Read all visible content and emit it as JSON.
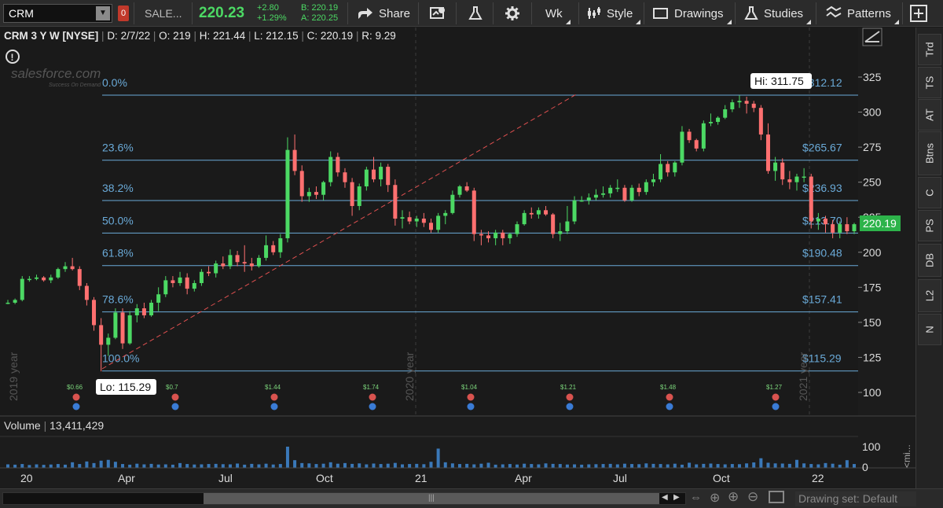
{
  "toolbar": {
    "symbol": "CRM",
    "symbol_badge": "0",
    "company_short": "SALE...",
    "last_price": "220.23",
    "change": "+2.80",
    "change_pct": "+1.29%",
    "bid": "B: 220.19",
    "ask": "A: 220.25",
    "share_label": "Share",
    "period_label": "Wk",
    "style_label": "Style",
    "drawings_label": "Drawings",
    "studies_label": "Studies",
    "patterns_label": "Patterns",
    "colors": {
      "up": "#4cd964",
      "down": "#ff7070",
      "accent": "#5ab0ff"
    }
  },
  "infobar": {
    "title": "CRM 3 Y W [NYSE]",
    "d": "D: 2/7/22",
    "o": "O: 219",
    "h": "H: 221.44",
    "l": "L: 212.15",
    "c": "C: 220.19",
    "r": "R: 9.29"
  },
  "logo": {
    "line1": "salesforce.com",
    "line2": "Success On Demand"
  },
  "right_tabs": [
    "Trd",
    "TS",
    "AT",
    "Btns",
    "C",
    "PS",
    "DB",
    "L2",
    "N"
  ],
  "bottom": {
    "drawing_set": "Drawing set: Default"
  },
  "chart_data": [
    {
      "type": "candlestick",
      "title": "CRM 3 Y W [NYSE]",
      "ylim": [
        92,
        335
      ],
      "y_ticks": [
        100,
        125,
        150,
        175,
        200,
        225,
        250,
        275,
        300,
        325
      ],
      "x_tick_labels": [
        "20",
        "Apr",
        "Jul",
        "Oct",
        "21",
        "Apr",
        "Jul",
        "Oct",
        "22"
      ],
      "year_labels": [
        "2019 year",
        "2020 year",
        "2021 year"
      ],
      "last_price_label": "220.19",
      "hi_label": "Hi: 311.75",
      "lo_label": "Lo: 115.29",
      "fib_levels": [
        {
          "pct": "0.0%",
          "price": 312.12,
          "label": "$312.12"
        },
        {
          "pct": "23.6%",
          "price": 265.67,
          "label": "$265.67"
        },
        {
          "pct": "38.2%",
          "price": 236.93,
          "label": "$236.93"
        },
        {
          "pct": "50.0%",
          "price": 213.7,
          "label": "$213.70"
        },
        {
          "pct": "61.8%",
          "price": 190.48,
          "label": "$190.48"
        },
        {
          "pct": "78.6%",
          "price": 157.41,
          "label": "$157.41"
        },
        {
          "pct": "100.0%",
          "price": 115.29,
          "label": "$115.29"
        }
      ],
      "dividends": [
        "$0.66",
        "$0.7",
        "$1.44",
        "$1.74",
        "$1.04",
        "$1.21",
        "$1.48",
        "$1.27"
      ],
      "candles": [
        {
          "o": 164,
          "h": 166,
          "l": 163,
          "c": 164
        },
        {
          "o": 164,
          "h": 167,
          "l": 163,
          "c": 166
        },
        {
          "o": 166,
          "h": 183,
          "l": 165,
          "c": 181
        },
        {
          "o": 181,
          "h": 183,
          "l": 179,
          "c": 181
        },
        {
          "o": 181,
          "h": 184,
          "l": 180,
          "c": 182
        },
        {
          "o": 182,
          "h": 183,
          "l": 179,
          "c": 180
        },
        {
          "o": 180,
          "h": 184,
          "l": 178,
          "c": 182
        },
        {
          "o": 182,
          "h": 189,
          "l": 181,
          "c": 188
        },
        {
          "o": 188,
          "h": 193,
          "l": 186,
          "c": 190
        },
        {
          "o": 190,
          "h": 196,
          "l": 187,
          "c": 188
        },
        {
          "o": 188,
          "h": 190,
          "l": 173,
          "c": 176
        },
        {
          "o": 176,
          "h": 178,
          "l": 162,
          "c": 166
        },
        {
          "o": 166,
          "h": 168,
          "l": 144,
          "c": 148
        },
        {
          "o": 148,
          "h": 153,
          "l": 115,
          "c": 134
        },
        {
          "o": 134,
          "h": 142,
          "l": 126,
          "c": 139
        },
        {
          "o": 139,
          "h": 160,
          "l": 138,
          "c": 157
        },
        {
          "o": 157,
          "h": 160,
          "l": 131,
          "c": 135
        },
        {
          "o": 135,
          "h": 158,
          "l": 134,
          "c": 155
        },
        {
          "o": 155,
          "h": 163,
          "l": 150,
          "c": 160
        },
        {
          "o": 160,
          "h": 164,
          "l": 153,
          "c": 155
        },
        {
          "o": 155,
          "h": 166,
          "l": 154,
          "c": 164
        },
        {
          "o": 164,
          "h": 175,
          "l": 158,
          "c": 170
        },
        {
          "o": 170,
          "h": 183,
          "l": 168,
          "c": 180
        },
        {
          "o": 180,
          "h": 183,
          "l": 175,
          "c": 178
        },
        {
          "o": 178,
          "h": 186,
          "l": 176,
          "c": 182
        },
        {
          "o": 182,
          "h": 185,
          "l": 170,
          "c": 174
        },
        {
          "o": 174,
          "h": 180,
          "l": 172,
          "c": 178
        },
        {
          "o": 178,
          "h": 188,
          "l": 176,
          "c": 186
        },
        {
          "o": 186,
          "h": 190,
          "l": 183,
          "c": 185
        },
        {
          "o": 185,
          "h": 194,
          "l": 182,
          "c": 192
        },
        {
          "o": 192,
          "h": 197,
          "l": 188,
          "c": 190
        },
        {
          "o": 190,
          "h": 202,
          "l": 188,
          "c": 198
        },
        {
          "o": 198,
          "h": 201,
          "l": 190,
          "c": 193
        },
        {
          "o": 193,
          "h": 205,
          "l": 186,
          "c": 192
        },
        {
          "o": 192,
          "h": 196,
          "l": 187,
          "c": 190
        },
        {
          "o": 190,
          "h": 198,
          "l": 189,
          "c": 196
        },
        {
          "o": 196,
          "h": 212,
          "l": 194,
          "c": 205
        },
        {
          "o": 205,
          "h": 208,
          "l": 198,
          "c": 200
        },
        {
          "o": 200,
          "h": 213,
          "l": 196,
          "c": 210
        },
        {
          "o": 210,
          "h": 282,
          "l": 207,
          "c": 273
        },
        {
          "o": 273,
          "h": 284,
          "l": 255,
          "c": 258
        },
        {
          "o": 258,
          "h": 262,
          "l": 236,
          "c": 240
        },
        {
          "o": 240,
          "h": 246,
          "l": 236,
          "c": 243
        },
        {
          "o": 243,
          "h": 247,
          "l": 238,
          "c": 241
        },
        {
          "o": 241,
          "h": 251,
          "l": 237,
          "c": 250
        },
        {
          "o": 250,
          "h": 272,
          "l": 247,
          "c": 268
        },
        {
          "o": 268,
          "h": 271,
          "l": 254,
          "c": 257
        },
        {
          "o": 257,
          "h": 260,
          "l": 246,
          "c": 250
        },
        {
          "o": 250,
          "h": 253,
          "l": 226,
          "c": 233
        },
        {
          "o": 233,
          "h": 249,
          "l": 230,
          "c": 247
        },
        {
          "o": 247,
          "h": 261,
          "l": 244,
          "c": 259
        },
        {
          "o": 259,
          "h": 268,
          "l": 250,
          "c": 252
        },
        {
          "o": 252,
          "h": 264,
          "l": 247,
          "c": 261
        },
        {
          "o": 261,
          "h": 263,
          "l": 243,
          "c": 248
        },
        {
          "o": 248,
          "h": 252,
          "l": 219,
          "c": 224
        },
        {
          "o": 224,
          "h": 230,
          "l": 217,
          "c": 225
        },
        {
          "o": 225,
          "h": 229,
          "l": 220,
          "c": 222
        },
        {
          "o": 222,
          "h": 226,
          "l": 218,
          "c": 224
        },
        {
          "o": 224,
          "h": 228,
          "l": 218,
          "c": 221
        },
        {
          "o": 221,
          "h": 224,
          "l": 214,
          "c": 216
        },
        {
          "o": 216,
          "h": 228,
          "l": 214,
          "c": 226
        },
        {
          "o": 226,
          "h": 230,
          "l": 220,
          "c": 228
        },
        {
          "o": 228,
          "h": 244,
          "l": 227,
          "c": 241
        },
        {
          "o": 241,
          "h": 248,
          "l": 239,
          "c": 247
        },
        {
          "o": 247,
          "h": 250,
          "l": 243,
          "c": 244
        },
        {
          "o": 244,
          "h": 246,
          "l": 208,
          "c": 213
        },
        {
          "o": 213,
          "h": 216,
          "l": 205,
          "c": 212
        },
        {
          "o": 212,
          "h": 215,
          "l": 207,
          "c": 210
        },
        {
          "o": 210,
          "h": 216,
          "l": 205,
          "c": 214
        },
        {
          "o": 214,
          "h": 216,
          "l": 205,
          "c": 210
        },
        {
          "o": 210,
          "h": 214,
          "l": 206,
          "c": 213
        },
        {
          "o": 213,
          "h": 222,
          "l": 211,
          "c": 220
        },
        {
          "o": 220,
          "h": 230,
          "l": 219,
          "c": 228
        },
        {
          "o": 228,
          "h": 232,
          "l": 224,
          "c": 227
        },
        {
          "o": 227,
          "h": 232,
          "l": 224,
          "c": 230
        },
        {
          "o": 230,
          "h": 233,
          "l": 226,
          "c": 227
        },
        {
          "o": 227,
          "h": 228,
          "l": 210,
          "c": 213
        },
        {
          "o": 213,
          "h": 221,
          "l": 208,
          "c": 215
        },
        {
          "o": 215,
          "h": 233,
          "l": 213,
          "c": 222
        },
        {
          "o": 222,
          "h": 240,
          "l": 220,
          "c": 237
        },
        {
          "o": 237,
          "h": 240,
          "l": 236,
          "c": 237
        },
        {
          "o": 237,
          "h": 242,
          "l": 234,
          "c": 239
        },
        {
          "o": 239,
          "h": 245,
          "l": 237,
          "c": 241
        },
        {
          "o": 241,
          "h": 247,
          "l": 239,
          "c": 242
        },
        {
          "o": 242,
          "h": 248,
          "l": 239,
          "c": 246
        },
        {
          "o": 246,
          "h": 252,
          "l": 243,
          "c": 246
        },
        {
          "o": 246,
          "h": 248,
          "l": 236,
          "c": 237
        },
        {
          "o": 237,
          "h": 248,
          "l": 236,
          "c": 246
        },
        {
          "o": 246,
          "h": 249,
          "l": 240,
          "c": 243
        },
        {
          "o": 243,
          "h": 252,
          "l": 241,
          "c": 250
        },
        {
          "o": 250,
          "h": 256,
          "l": 247,
          "c": 252
        },
        {
          "o": 252,
          "h": 270,
          "l": 250,
          "c": 263
        },
        {
          "o": 263,
          "h": 265,
          "l": 254,
          "c": 257
        },
        {
          "o": 257,
          "h": 265,
          "l": 254,
          "c": 264
        },
        {
          "o": 264,
          "h": 290,
          "l": 262,
          "c": 286
        },
        {
          "o": 286,
          "h": 288,
          "l": 278,
          "c": 280
        },
        {
          "o": 280,
          "h": 281,
          "l": 272,
          "c": 274
        },
        {
          "o": 274,
          "h": 294,
          "l": 272,
          "c": 292
        },
        {
          "o": 292,
          "h": 299,
          "l": 290,
          "c": 293
        },
        {
          "o": 293,
          "h": 297,
          "l": 291,
          "c": 296
        },
        {
          "o": 296,
          "h": 305,
          "l": 295,
          "c": 302
        },
        {
          "o": 302,
          "h": 309,
          "l": 300,
          "c": 307
        },
        {
          "o": 307,
          "h": 312,
          "l": 303,
          "c": 308
        },
        {
          "o": 308,
          "h": 311,
          "l": 299,
          "c": 306
        },
        {
          "o": 306,
          "h": 308,
          "l": 300,
          "c": 303
        },
        {
          "o": 303,
          "h": 305,
          "l": 280,
          "c": 284
        },
        {
          "o": 284,
          "h": 292,
          "l": 256,
          "c": 258
        },
        {
          "o": 258,
          "h": 268,
          "l": 251,
          "c": 264
        },
        {
          "o": 264,
          "h": 267,
          "l": 248,
          "c": 252
        },
        {
          "o": 252,
          "h": 258,
          "l": 245,
          "c": 250
        },
        {
          "o": 250,
          "h": 256,
          "l": 244,
          "c": 254
        },
        {
          "o": 254,
          "h": 260,
          "l": 250,
          "c": 254
        },
        {
          "o": 254,
          "h": 256,
          "l": 217,
          "c": 222
        },
        {
          "o": 222,
          "h": 228,
          "l": 216,
          "c": 224
        },
        {
          "o": 224,
          "h": 226,
          "l": 214,
          "c": 220
        },
        {
          "o": 220,
          "h": 223,
          "l": 210,
          "c": 214
        },
        {
          "o": 214,
          "h": 222,
          "l": 210,
          "c": 220
        },
        {
          "o": 220,
          "h": 225,
          "l": 213,
          "c": 215
        },
        {
          "o": 215,
          "h": 221,
          "l": 213,
          "c": 220
        }
      ]
    },
    {
      "type": "bar",
      "title": "Volume",
      "last_value_label": "13,411,429",
      "y_ticks": [
        0,
        100
      ],
      "max_tick_label": "100",
      "zero_tick_label": "0",
      "values": [
        22,
        20,
        24,
        18,
        22,
        19,
        21,
        24,
        20,
        35,
        24,
        40,
        30,
        45,
        50,
        38,
        24,
        20,
        26,
        22,
        25,
        21,
        22,
        20,
        30,
        24,
        21,
        22,
        24,
        25,
        23,
        22,
        27,
        20,
        25,
        22,
        26,
        21,
        24,
        132,
        48,
        30,
        28,
        24,
        26,
        35,
        26,
        30,
        25,
        28,
        22,
        27,
        24,
        26,
        31,
        22,
        24,
        25,
        23,
        38,
        120,
        35,
        28,
        24,
        25,
        22,
        26,
        32,
        20,
        22,
        24,
        21,
        26,
        24,
        22,
        28,
        25,
        24,
        21,
        22,
        20,
        22,
        23,
        24,
        25,
        22,
        26,
        24,
        23,
        28,
        25,
        24,
        22,
        26,
        20,
        32,
        22,
        25,
        27,
        24,
        22,
        24,
        23,
        28,
        34,
        60,
        32,
        28,
        27,
        25,
        50,
        28,
        24,
        22,
        30,
        26,
        20,
        48,
        24
      ]
    }
  ]
}
